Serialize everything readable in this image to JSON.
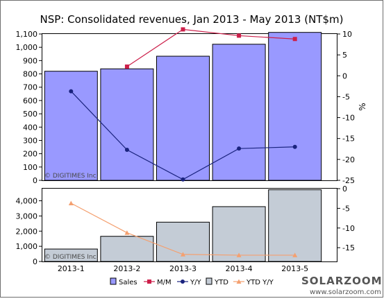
{
  "chart_data": [
    {
      "type": "bar",
      "title": "NSP: Consolidated revenues, Jan 2013 - May 2013 (NT$m)",
      "watermark": "© DIGITIMES Inc.",
      "categories": [
        "2013-1",
        "2013-2",
        "2013-3",
        "2013-4",
        "2013-5"
      ],
      "ylim_left": [
        0,
        1100
      ],
      "yticks_left": [
        "0",
        "100",
        "200",
        "300",
        "400",
        "500",
        "600",
        "700",
        "800",
        "900",
        "1,000",
        "1,100"
      ],
      "ylim_right": [
        -25,
        10
      ],
      "yticks_right": [
        "10",
        "5",
        "0",
        "-5",
        "-10",
        "-15",
        "-20",
        "-25"
      ],
      "ylabel_right": "%",
      "series": [
        {
          "name": "Sales",
          "kind": "bar",
          "axis": "left",
          "color": "#9999ff",
          "values": [
            820,
            838,
            933,
            1023,
            1112
          ]
        },
        {
          "name": "M/M",
          "kind": "line",
          "axis": "right",
          "color": "#cc1f4a",
          "marker": "square",
          "values": [
            null,
            2.2,
            11.1,
            9.6,
            8.8
          ]
        },
        {
          "name": "Y/Y",
          "kind": "line",
          "axis": "right",
          "color": "#1a237e",
          "marker": "circle",
          "values": [
            -3.7,
            -17.7,
            -24.8,
            -17.4,
            -17.0
          ]
        }
      ]
    },
    {
      "type": "bar",
      "watermark": "© DIGITIMES Inc.",
      "categories": [
        "2013-1",
        "2013-2",
        "2013-3",
        "2013-4",
        "2013-5"
      ],
      "ylim_left": [
        0,
        4800
      ],
      "yticks_left": [
        "0",
        "1,000",
        "2,000",
        "3,000",
        "4,000"
      ],
      "ylim_right": [
        -18.5,
        0
      ],
      "yticks_right": [
        "0",
        "-5",
        "-10",
        "-15"
      ],
      "series": [
        {
          "name": "YTD",
          "kind": "bar",
          "axis": "left",
          "color": "#c4ccd6",
          "values": [
            820,
            1658,
            2591,
            3614,
            4726
          ]
        },
        {
          "name": "YTD Y/Y",
          "kind": "line",
          "axis": "right",
          "color": "#f4a070",
          "marker": "triangle",
          "values": [
            -3.7,
            -11.2,
            -16.7,
            -16.9,
            -16.9
          ]
        }
      ]
    }
  ],
  "legend": [
    {
      "label": "Sales",
      "kind": "box",
      "color": "#9999ff"
    },
    {
      "label": "M/M",
      "kind": "line",
      "marker": "square",
      "color": "#cc1f4a"
    },
    {
      "label": "Y/Y",
      "kind": "line",
      "marker": "circle",
      "color": "#1a237e"
    },
    {
      "label": "YTD",
      "kind": "box",
      "color": "#c4ccd6"
    },
    {
      "label": "YTD Y/Y",
      "kind": "line",
      "marker": "triangle",
      "color": "#f4a070"
    }
  ],
  "logo": {
    "text": "SOLARZOOM",
    "url_text": "www.solarzoom.com"
  }
}
